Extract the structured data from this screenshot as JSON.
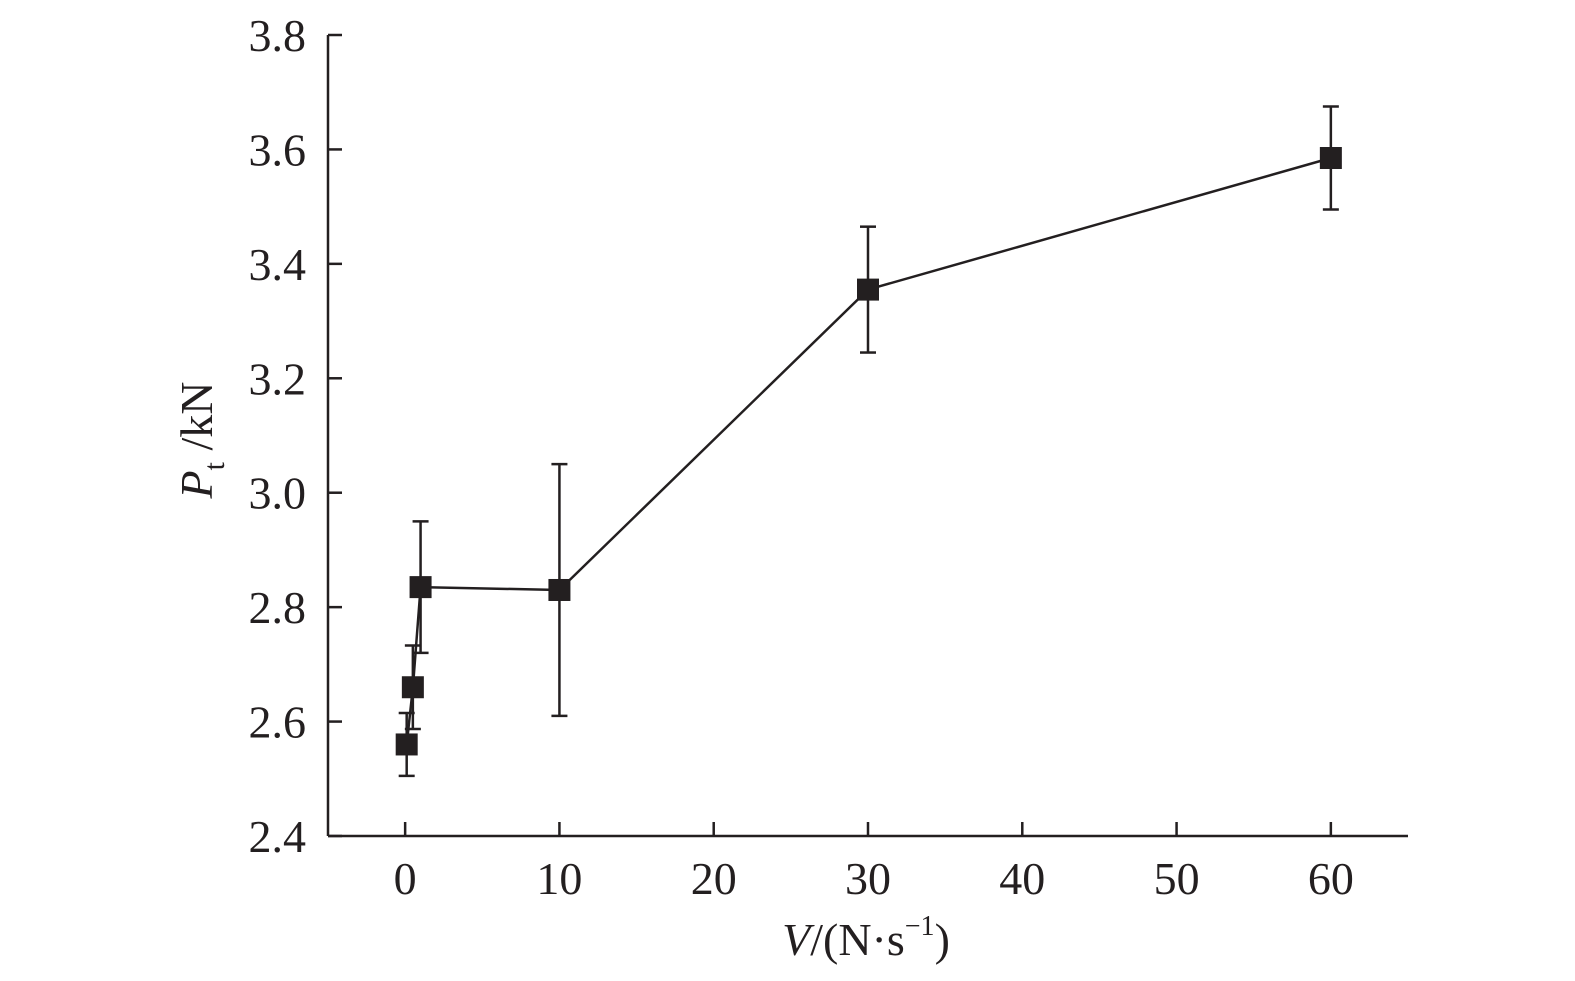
{
  "chart_data": {
    "type": "line",
    "title": "",
    "xlabel": {
      "var": "V",
      "unit": "/(N·s",
      "exp": "−1",
      "close": ")"
    },
    "ylabel": {
      "var": "P",
      "sub": "t",
      "unit": " /kN"
    },
    "xlim": [
      -5,
      65
    ],
    "ylim": [
      2.4,
      3.8
    ],
    "xticks": [
      0,
      10,
      20,
      30,
      40,
      50,
      60
    ],
    "xtick_labels": [
      "0",
      "10",
      "20",
      "30",
      "40",
      "50",
      "60"
    ],
    "yticks": [
      2.4,
      2.6,
      2.8,
      3.0,
      3.2,
      3.4,
      3.6,
      3.8
    ],
    "ytick_labels": [
      "2.4",
      "2.6",
      "2.8",
      "3.0",
      "3.2",
      "3.4",
      "3.6",
      "3.8"
    ],
    "grid": false,
    "legend": "none",
    "series": [
      {
        "marker": "square",
        "color": "#231f20",
        "points": [
          {
            "x": 0.1,
            "y": 2.56,
            "err": 0.055
          },
          {
            "x": 0.5,
            "y": 2.66,
            "err": 0.073
          },
          {
            "x": 1,
            "y": 2.835,
            "err": 0.115
          },
          {
            "x": 10,
            "y": 2.83,
            "err": 0.22
          },
          {
            "x": 30,
            "y": 3.355,
            "err": 0.11
          },
          {
            "x": 60,
            "y": 3.585,
            "err": 0.09
          }
        ]
      }
    ]
  }
}
